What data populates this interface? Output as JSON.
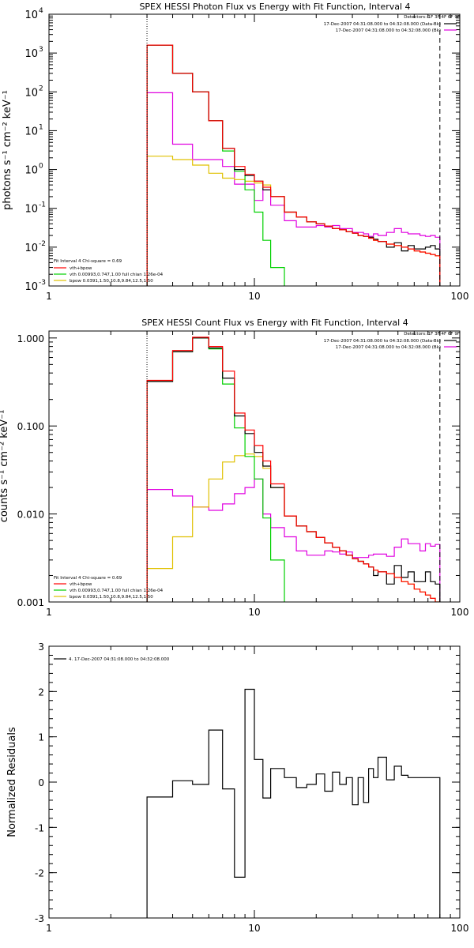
{
  "colors": {
    "background": "#ffffff",
    "axes": "#000000",
    "data": "#000000",
    "total": "#ff0000",
    "vth": "#00d000",
    "bpow": "#e0c000",
    "background_line": "#e000e0"
  },
  "chart_data": [
    {
      "type": "line",
      "title": "SPEX HESSI Photon Flux vs Energy with Fit Function, Interval 4",
      "xlabel": "",
      "ylabel": "photons s⁻¹ cm⁻² keV⁻¹",
      "xscale": "log",
      "yscale": "log",
      "xlim": [
        1,
        100
      ],
      "ylim": [
        0.001,
        10000
      ],
      "x_ticks": [
        {
          "value": 1,
          "label": "1"
        },
        {
          "value": 10,
          "label": "10"
        },
        {
          "value": 100,
          "label": "100"
        }
      ],
      "y_ticks": [
        {
          "value": 0.001,
          "mantissa": "10",
          "exp": "-3"
        },
        {
          "value": 0.01,
          "mantissa": "10",
          "exp": "-2"
        },
        {
          "value": 0.1,
          "mantissa": "10",
          "exp": "-1"
        },
        {
          "value": 1,
          "mantissa": "10",
          "exp": "0"
        },
        {
          "value": 10,
          "mantissa": "10",
          "exp": "1"
        },
        {
          "value": 100,
          "mantissa": "10",
          "exp": "2"
        },
        {
          "value": 1000,
          "mantissa": "10",
          "exp": "3"
        },
        {
          "value": 10000,
          "mantissa": "10",
          "exp": "4"
        }
      ],
      "vlines": [
        {
          "x": 3,
          "style": "dotted"
        },
        {
          "x": 80,
          "style": "dashed"
        }
      ],
      "legend_top_right": [
        {
          "text": "Detectors: 1F 3F 4F 6F 9F",
          "color": ""
        },
        {
          "text": "17-Dec-2007 04:31:08.000 to 04:32:08.000 (Data-Bk)",
          "color": "#000000"
        },
        {
          "text": "17-Dec-2007 04:31:08.000 to 04:32:08.000 (Bk)",
          "color": "#e000e0"
        }
      ],
      "legend_bottom_left": [
        {
          "text": "Fit Interval  4    Chi-square = 0.69",
          "color": ""
        },
        {
          "text": "vth+bpow",
          "color": "#ff0000"
        },
        {
          "text": "vth 0.00993,0.747,1.00   full chian 1.26e-04",
          "color": "#00d000"
        },
        {
          "text": "bpow 0.0391,1.50,10.8,9.84,12.5,1.50",
          "color": "#e0c000"
        }
      ],
      "bin_edges": [
        3,
        4,
        5,
        6,
        7,
        8,
        9,
        10,
        11,
        12,
        14,
        16,
        18,
        20,
        22,
        24,
        26,
        28,
        30,
        32,
        34,
        36,
        38,
        40,
        44,
        48,
        52,
        56,
        60,
        64,
        68,
        72,
        76,
        80
      ],
      "series": [
        {
          "color": "#e000e0",
          "values": [
            95,
            4.5,
            1.8,
            1.8,
            1.2,
            0.42,
            0.42,
            0.16,
            0.3,
            0.12,
            0.048,
            0.033,
            0.033,
            0.036,
            0.033,
            0.036,
            0.03,
            0.03,
            0.024,
            0.024,
            0.022,
            0.019,
            0.022,
            0.02,
            0.024,
            0.03,
            0.024,
            0.022,
            0.022,
            0.02,
            0.019,
            0.02,
            0.018
          ]
        },
        {
          "color": "#e0c000",
          "values": [
            2.2,
            1.8,
            1.3,
            0.8,
            0.6,
            0.55,
            0.5,
            0.45,
            0.4,
            0.2,
            0.08,
            0.06,
            0.045,
            0.04,
            0.035,
            0.03,
            0.028,
            0.025,
            0.023,
            0.02,
            0.019,
            0.017,
            0.015,
            0.014,
            0.012,
            0.011,
            0.01,
            0.009,
            0.008,
            0.0075,
            0.007,
            0.0065,
            0.006
          ]
        },
        {
          "color": "#00d000",
          "values": [
            1600,
            300,
            100,
            18,
            3,
            0.9,
            0.3,
            0.08,
            0.015,
            0.003,
            0.0008,
            0.0008,
            0.0008,
            0.0008,
            0.0008,
            0.0008,
            0.0008,
            0.0008,
            0.0008,
            0.0008,
            0.0008,
            0.0008,
            0.0008,
            0.0008,
            0.0008,
            0.0008,
            0.0008,
            0.0008,
            0.0008,
            0.0008,
            0.0008,
            0.0008,
            0.0008
          ]
        },
        {
          "color": "#000000",
          "values": [
            1600,
            300,
            100,
            18,
            3.5,
            1,
            0.7,
            0.5,
            0.3,
            0.2,
            0.08,
            0.06,
            0.045,
            0.04,
            0.035,
            0.03,
            0.028,
            0.025,
            0.023,
            0.02,
            0.019,
            0.018,
            0.016,
            0.014,
            0.01,
            0.013,
            0.008,
            0.011,
            0.009,
            0.009,
            0.01,
            0.011,
            0.009
          ]
        },
        {
          "color": "#ff0000",
          "values": [
            1600,
            300,
            100,
            18,
            3.5,
            1.2,
            0.75,
            0.5,
            0.35,
            0.2,
            0.08,
            0.06,
            0.045,
            0.04,
            0.035,
            0.03,
            0.028,
            0.025,
            0.023,
            0.02,
            0.019,
            0.017,
            0.015,
            0.014,
            0.012,
            0.011,
            0.01,
            0.009,
            0.008,
            0.0075,
            0.007,
            0.0065,
            0.006
          ]
        }
      ]
    },
    {
      "type": "line",
      "title": "SPEX HESSI Count Flux vs Energy with Fit Function, Interval 4",
      "xlabel": "",
      "ylabel": "counts s⁻¹ cm⁻² keV⁻¹",
      "xscale": "log",
      "yscale": "log",
      "xlim": [
        1,
        100
      ],
      "ylim": [
        0.001,
        1.2
      ],
      "x_ticks": [
        {
          "value": 1,
          "label": "1"
        },
        {
          "value": 10,
          "label": "10"
        },
        {
          "value": 100,
          "label": "100"
        }
      ],
      "y_ticks": [
        {
          "value": 0.001,
          "label": "0.001"
        },
        {
          "value": 0.01,
          "label": "0.010"
        },
        {
          "value": 0.1,
          "label": "0.100"
        },
        {
          "value": 1,
          "label": "1.000"
        }
      ],
      "vlines": [
        {
          "x": 3,
          "style": "dotted"
        },
        {
          "x": 80,
          "style": "dashed"
        }
      ],
      "legend_top_right": [
        {
          "text": "Detectors: 1F 3F 4F 6F 9F",
          "color": ""
        },
        {
          "text": "17-Dec-2007 04:31:08.000 to 04:32:08.000 (Data-Bk)",
          "color": "#000000"
        },
        {
          "text": "17-Dec-2007 04:31:08.000 to 04:32:08.000 (Bk)",
          "color": "#e000e0"
        }
      ],
      "legend_bottom_left": [
        {
          "text": "Fit Interval  4    Chi-square = 0.69",
          "color": ""
        },
        {
          "text": "vth+bpow",
          "color": "#ff0000"
        },
        {
          "text": "vth 0.00993,0.747,1.00   full chian 1.26e-04",
          "color": "#00d000"
        },
        {
          "text": "bpow 0.0391,1.50,10.8,9.84,12.5,1.50",
          "color": "#e0c000"
        }
      ],
      "bin_edges": [
        3,
        4,
        5,
        6,
        7,
        8,
        9,
        10,
        11,
        12,
        14,
        16,
        18,
        20,
        22,
        24,
        26,
        28,
        30,
        32,
        34,
        36,
        38,
        40,
        44,
        48,
        52,
        56,
        60,
        64,
        68,
        72,
        76,
        80
      ],
      "series": [
        {
          "color": "#e000e0",
          "values": [
            0.019,
            0.016,
            0.012,
            0.011,
            0.013,
            0.017,
            0.02,
            0.025,
            0.01,
            0.007,
            0.0055,
            0.0038,
            0.0034,
            0.0034,
            0.0038,
            0.0037,
            0.0035,
            0.0037,
            0.0032,
            0.0032,
            0.0032,
            0.0034,
            0.0035,
            0.0035,
            0.0033,
            0.0042,
            0.0052,
            0.0046,
            0.0046,
            0.0038,
            0.0046,
            0.0043,
            0.0045
          ]
        },
        {
          "color": "#e0c000",
          "values": [
            0.0024,
            0.0055,
            0.012,
            0.025,
            0.039,
            0.046,
            0.048,
            0.045,
            0.033,
            0.02,
            0.0095,
            0.0073,
            0.0063,
            0.0054,
            0.0047,
            0.0042,
            0.0038,
            0.0034,
            0.0031,
            0.0029,
            0.0027,
            0.0025,
            0.0023,
            0.0022,
            0.0021,
            0.0019,
            0.0017,
            0.0016,
            0.0014,
            0.0013,
            0.0012,
            0.0011,
            0.001
          ]
        },
        {
          "color": "#00d000",
          "values": [
            0.32,
            0.7,
            1.0,
            0.75,
            0.3,
            0.095,
            0.045,
            0.025,
            0.009,
            0.003,
            0.0009,
            0.0009,
            0.0009,
            0.0009,
            0.0009,
            0.0009,
            0.0009,
            0.0009,
            0.0009,
            0.0009,
            0.0009,
            0.0009,
            0.0009,
            0.0009,
            0.0009,
            0.0009,
            0.0009,
            0.0009,
            0.0009,
            0.0009,
            0.0009,
            0.0009,
            0.0009
          ]
        },
        {
          "color": "#000000",
          "values": [
            0.32,
            0.7,
            1.0,
            0.77,
            0.35,
            0.13,
            0.082,
            0.05,
            0.035,
            0.02,
            0.0095,
            0.0073,
            0.0063,
            0.0054,
            0.0047,
            0.0042,
            0.0038,
            0.0034,
            0.0031,
            0.0029,
            0.0027,
            0.0025,
            0.002,
            0.0022,
            0.0016,
            0.0026,
            0.0019,
            0.0022,
            0.0017,
            0.0017,
            0.0022,
            0.0017,
            0.0016
          ]
        },
        {
          "color": "#ff0000",
          "values": [
            0.33,
            0.72,
            1.02,
            0.8,
            0.42,
            0.14,
            0.09,
            0.06,
            0.04,
            0.022,
            0.0095,
            0.0073,
            0.0063,
            0.0054,
            0.0047,
            0.0042,
            0.0038,
            0.0034,
            0.0031,
            0.0029,
            0.0027,
            0.0025,
            0.0023,
            0.0022,
            0.0021,
            0.0019,
            0.0017,
            0.0016,
            0.0014,
            0.0013,
            0.0012,
            0.0011,
            0.001
          ]
        }
      ]
    },
    {
      "type": "line",
      "title": "",
      "xlabel": "",
      "ylabel": "Normalized Residuals",
      "xscale": "log",
      "yscale": "linear",
      "xlim": [
        1,
        100
      ],
      "ylim": [
        -3,
        3
      ],
      "x_ticks": [
        {
          "value": 1,
          "label": "1"
        },
        {
          "value": 10,
          "label": "10"
        },
        {
          "value": 100,
          "label": "100"
        }
      ],
      "y_ticks": [
        {
          "value": -3,
          "label": "-3"
        },
        {
          "value": -2,
          "label": "-2"
        },
        {
          "value": -1,
          "label": "-1"
        },
        {
          "value": 0,
          "label": "0"
        },
        {
          "value": 1,
          "label": "1"
        },
        {
          "value": 2,
          "label": "2"
        },
        {
          "value": 3,
          "label": "3"
        }
      ],
      "vlines": [],
      "legend_top_left": [
        {
          "text": "4. 17-Dec-2007 04:31:08.000 to 04:32:08.000",
          "color": "#000000"
        }
      ],
      "bin_edges": [
        3,
        4,
        5,
        6,
        7,
        8,
        9,
        10,
        11,
        12,
        14,
        16,
        18,
        20,
        22,
        24,
        26,
        28,
        30,
        32,
        34,
        36,
        38,
        40,
        44,
        48,
        52,
        56,
        60,
        64,
        68,
        72,
        76,
        80
      ],
      "series": [
        {
          "color": "#000000",
          "values": [
            -0.33,
            0.03,
            -0.05,
            1.15,
            -0.15,
            -2.1,
            2.05,
            0.5,
            -0.35,
            0.3,
            0.1,
            -0.12,
            -0.05,
            0.18,
            -0.2,
            0.22,
            -0.05,
            0.1,
            -0.5,
            0.1,
            -0.45,
            0.3,
            0.1,
            0.55,
            0.05,
            0.35,
            0.15,
            0.1,
            0.1,
            0.1,
            0.1,
            0.1,
            0.1
          ]
        }
      ]
    }
  ]
}
